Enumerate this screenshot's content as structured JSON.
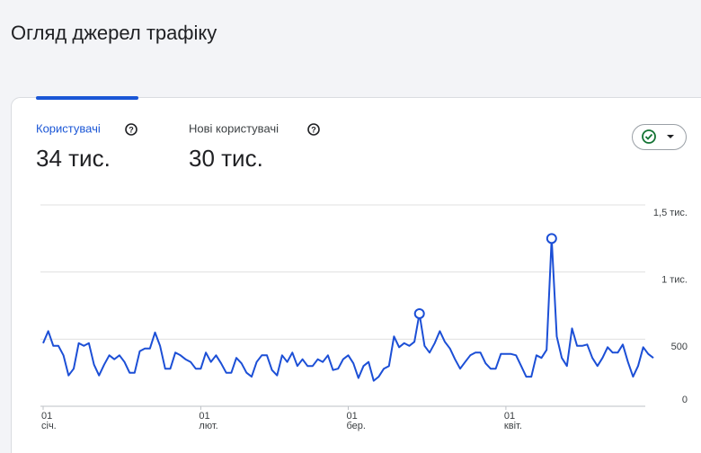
{
  "header": {
    "title": "Огляд джерел трафіку"
  },
  "metrics": [
    {
      "label": "Користувачі",
      "value": "34 тис."
    },
    {
      "label": "Нові користувачі",
      "value": "30 тис."
    }
  ],
  "chart_data": {
    "type": "line",
    "color": "#1c4fd6",
    "categories": [
      "01\nсіч.",
      null,
      null,
      null,
      null,
      null,
      null,
      null,
      null,
      null,
      null,
      null,
      null,
      null,
      null,
      null,
      null,
      null,
      null,
      null,
      null,
      null,
      null,
      null,
      null,
      null,
      null,
      null,
      null,
      null,
      null,
      "01\nлют.",
      null,
      null,
      null,
      null,
      null,
      null,
      null,
      null,
      null,
      null,
      null,
      null,
      null,
      null,
      null,
      null,
      null,
      null,
      null,
      null,
      null,
      null,
      null,
      null,
      null,
      null,
      null,
      null,
      "01\nбер.",
      null,
      null,
      null,
      null,
      null,
      null,
      null,
      null,
      null,
      null,
      null,
      null,
      null,
      null,
      null,
      null,
      null,
      null,
      null,
      null,
      null,
      null,
      null,
      null,
      null,
      null,
      null,
      null,
      null,
      null,
      "01\nквіт.",
      null,
      null,
      null,
      null,
      null,
      null,
      null,
      null,
      null,
      null,
      null,
      null,
      null,
      null,
      null,
      null,
      null,
      null,
      null,
      null,
      null,
      null,
      null,
      null,
      null,
      null,
      null,
      null,
      null
    ],
    "values": [
      470,
      560,
      450,
      450,
      380,
      230,
      280,
      470,
      450,
      470,
      310,
      230,
      310,
      380,
      350,
      380,
      330,
      250,
      250,
      410,
      430,
      430,
      550,
      450,
      280,
      280,
      400,
      380,
      350,
      330,
      280,
      280,
      400,
      330,
      380,
      320,
      250,
      250,
      360,
      320,
      250,
      220,
      330,
      380,
      380,
      270,
      230,
      380,
      330,
      400,
      300,
      350,
      300,
      300,
      350,
      330,
      380,
      270,
      280,
      350,
      380,
      320,
      210,
      300,
      330,
      190,
      220,
      280,
      300,
      520,
      440,
      470,
      450,
      480,
      690,
      450,
      400,
      470,
      560,
      480,
      430,
      350,
      280,
      330,
      380,
      400,
      400,
      320,
      280,
      280,
      390,
      390,
      390,
      380,
      300,
      220,
      220,
      380,
      360,
      420,
      1250,
      520,
      360,
      300,
      580,
      450,
      450,
      460,
      360,
      300,
      360,
      440,
      400,
      400,
      460,
      330,
      220,
      300,
      440,
      390,
      360
    ],
    "highlighted_points": [
      74,
      100
    ],
    "ylim": [
      0,
      1500
    ],
    "yticks": [
      0,
      500,
      {
        "value": 1000,
        "label": "1 тис."
      },
      {
        "value": 1500,
        "label": "1,5 тис."
      }
    ],
    "grid": true
  }
}
